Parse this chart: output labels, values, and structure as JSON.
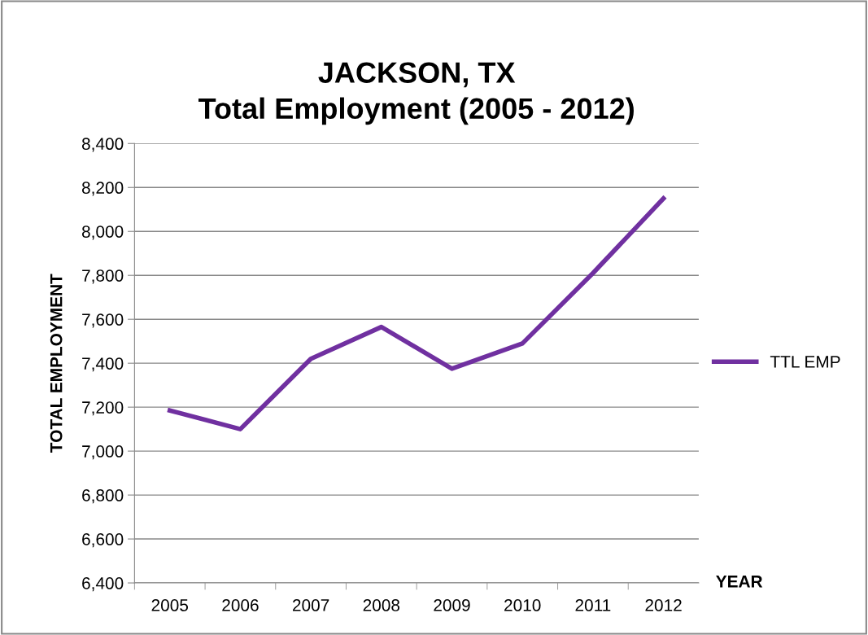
{
  "chart_data": {
    "type": "line",
    "title": "JACKSON, TX\nTotal Employment (2005 - 2012)",
    "xlabel": "YEAR",
    "ylabel": "TOTAL EMPLOYMENT",
    "categories": [
      "2005",
      "2006",
      "2007",
      "2008",
      "2009",
      "2010",
      "2011",
      "2012"
    ],
    "series": [
      {
        "name": "TTL EMP",
        "color": "#7030a0",
        "values": [
          7185,
          7100,
          7420,
          7565,
          7375,
          7490,
          7810,
          8150
        ]
      }
    ],
    "ylim": [
      6400,
      8400
    ],
    "yticks": [
      {
        "value": 6400,
        "label": "6,400"
      },
      {
        "value": 6600,
        "label": "6,600"
      },
      {
        "value": 6800,
        "label": "6,800"
      },
      {
        "value": 7000,
        "label": "7,000"
      },
      {
        "value": 7200,
        "label": "7,200"
      },
      {
        "value": 7400,
        "label": "7,400"
      },
      {
        "value": 7600,
        "label": "7,600"
      },
      {
        "value": 7800,
        "label": "7,800"
      },
      {
        "value": 8000,
        "label": "8,000"
      },
      {
        "value": 8200,
        "label": "8,200"
      },
      {
        "value": 8400,
        "label": "8,400"
      }
    ],
    "grid": "y",
    "legend": "right",
    "marker": "none",
    "line_style": "solid"
  }
}
